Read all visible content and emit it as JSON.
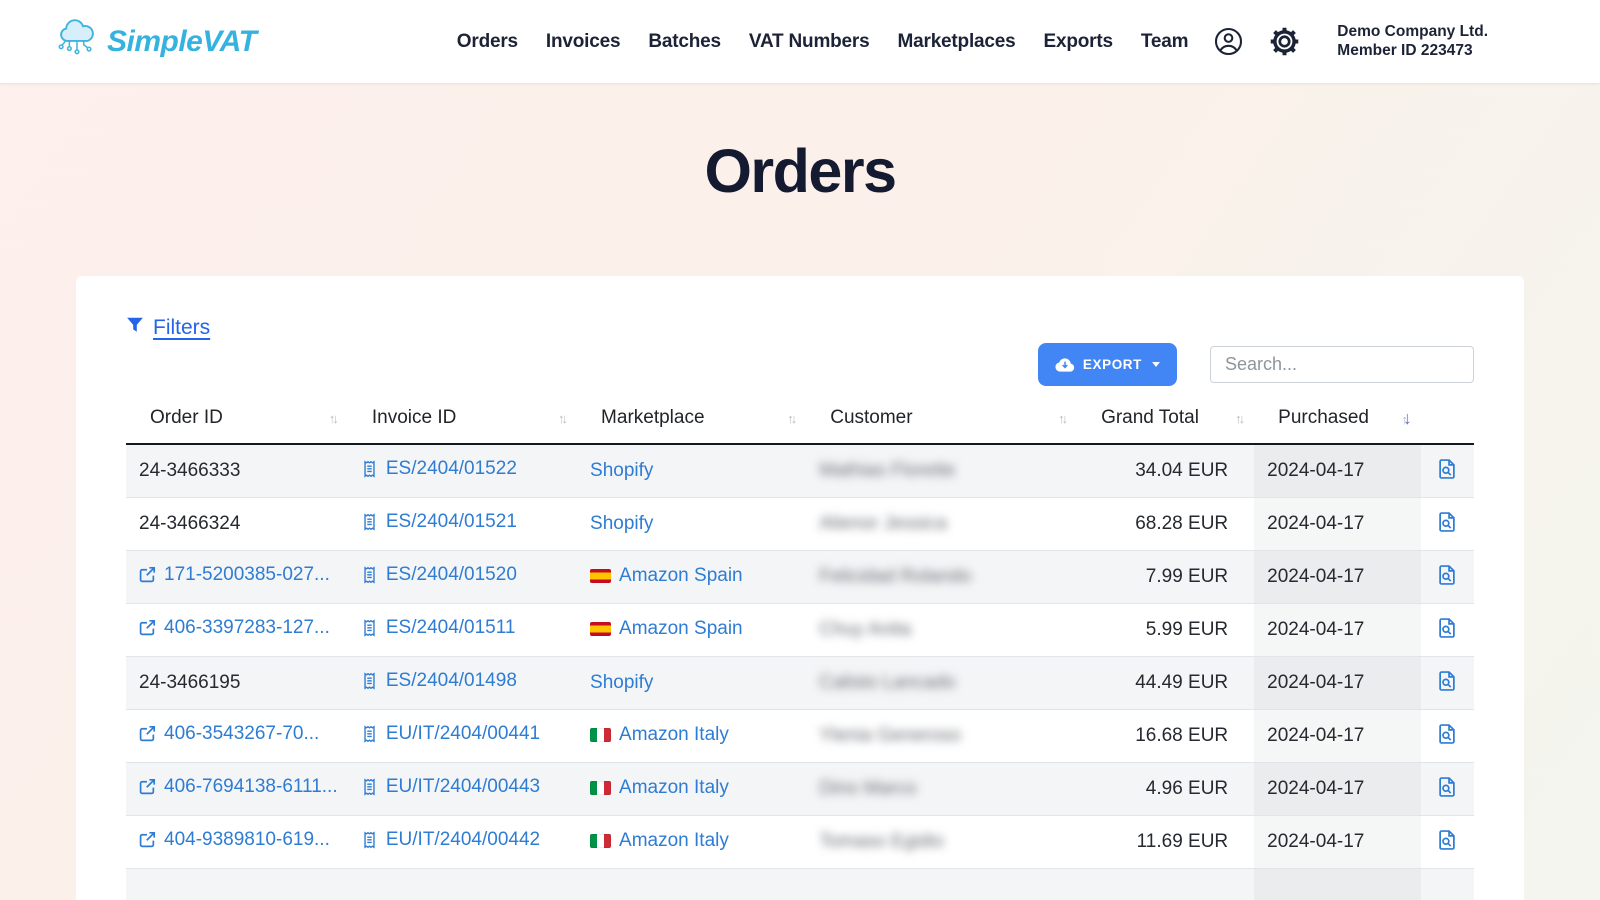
{
  "brand": {
    "name": "SimpleVAT"
  },
  "nav": {
    "items": [
      "Orders",
      "Invoices",
      "Batches",
      "VAT Numbers",
      "Marketplaces",
      "Exports",
      "Team"
    ]
  },
  "account": {
    "company_name": "Demo Company Ltd.",
    "member_id": "Member ID 223473"
  },
  "page": {
    "title": "Orders"
  },
  "toolbar": {
    "filters_label": "Filters",
    "export_label": "EXPORT",
    "search_placeholder": "Search...",
    "search_value": ""
  },
  "table": {
    "columns": [
      {
        "label": "Order ID",
        "sort": "unsorted"
      },
      {
        "label": "Invoice ID",
        "sort": "unsorted"
      },
      {
        "label": "Marketplace",
        "sort": "unsorted"
      },
      {
        "label": "Customer",
        "sort": "unsorted"
      },
      {
        "label": "Grand Total",
        "sort": "unsorted"
      },
      {
        "label": "Purchased",
        "sort": "desc"
      },
      {
        "label": "",
        "sort": "none"
      }
    ],
    "customers_blurred": true,
    "rows": [
      {
        "order_id": "24-3466333",
        "order_linked": false,
        "invoice_id": "ES/2404/01522",
        "marketplace": "Shopify",
        "flag": null,
        "customer": "Mathias Florette",
        "grand_total": "34.04 EUR",
        "purchased": "2024-04-17"
      },
      {
        "order_id": "24-3466324",
        "order_linked": false,
        "invoice_id": "ES/2404/01521",
        "marketplace": "Shopify",
        "flag": null,
        "customer": "Alienor Jessica",
        "grand_total": "68.28 EUR",
        "purchased": "2024-04-17"
      },
      {
        "order_id": "171-5200385-027...",
        "order_linked": true,
        "invoice_id": "ES/2404/01520",
        "marketplace": "Amazon Spain",
        "flag": "es",
        "customer": "Felicidad Rolando",
        "grand_total": "7.99 EUR",
        "purchased": "2024-04-17"
      },
      {
        "order_id": "406-3397283-127...",
        "order_linked": true,
        "invoice_id": "ES/2404/01511",
        "marketplace": "Amazon Spain",
        "flag": "es",
        "customer": "Chuy Anita",
        "grand_total": "5.99 EUR",
        "purchased": "2024-04-17"
      },
      {
        "order_id": "24-3466195",
        "order_linked": false,
        "invoice_id": "ES/2404/01498",
        "marketplace": "Shopify",
        "flag": null,
        "customer": "Calisto Lancado",
        "grand_total": "44.49 EUR",
        "purchased": "2024-04-17"
      },
      {
        "order_id": "406-3543267-70...",
        "order_linked": true,
        "invoice_id": "EU/IT/2404/00441",
        "marketplace": "Amazon Italy",
        "flag": "it",
        "customer": "Ylenia Generoso",
        "grand_total": "16.68 EUR",
        "purchased": "2024-04-17"
      },
      {
        "order_id": "406-7694138-6111...",
        "order_linked": true,
        "invoice_id": "EU/IT/2404/00443",
        "marketplace": "Amazon Italy",
        "flag": "it",
        "customer": "Dino Marco",
        "grand_total": "4.96 EUR",
        "purchased": "2024-04-17"
      },
      {
        "order_id": "404-9389810-619...",
        "order_linked": true,
        "invoice_id": "EU/IT/2404/00442",
        "marketplace": "Amazon Italy",
        "flag": "it",
        "customer": "Tomaso Egidio",
        "grand_total": "11.69 EUR",
        "purchased": "2024-04-17"
      }
    ],
    "partial_row_visible": true
  },
  "icons": {
    "logo": "cloud-network-icon",
    "nav_right": [
      "account-icon",
      "settings-gear-icon"
    ],
    "filters": "filter-funnel-icon",
    "export": "cloud-download-icon",
    "order_link": "external-link-icon",
    "invoice": "receipt-icon",
    "row_action": "file-search-icon"
  },
  "colors": {
    "brand_cyan": "#35b3de",
    "export_button_blue": "#4285f4",
    "table_link_blue": "#2e7cd3",
    "filters_blue": "#2563e8",
    "active_sort_indigo": "#5f6fd8",
    "stripe_gray": "#f4f5f6",
    "background_pink": "#fdf0ed",
    "spain_flag": [
      "#c60b1e",
      "#ffc400"
    ],
    "italy_flag": [
      "#009246",
      "#ffffff",
      "#ce2b37"
    ]
  }
}
